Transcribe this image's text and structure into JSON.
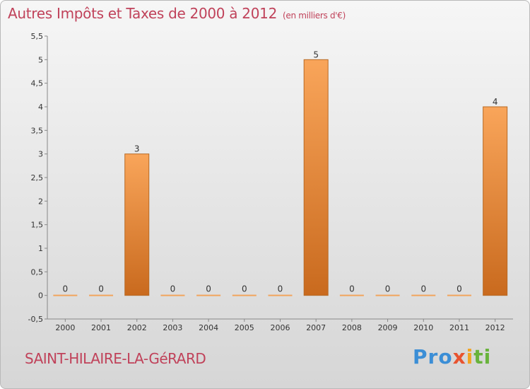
{
  "header": {
    "title": "Autres Impôts et Taxes de 2000 à 2012",
    "unit": "(en milliers d'€)"
  },
  "footer": {
    "commune": "SAINT-HILAIRE-LA-GéRARD"
  },
  "logo": {
    "part1": "Pro",
    "part2": "x",
    "part3": "i",
    "part4": "ti"
  },
  "colors": {
    "bar_light": "#f9a55a",
    "bar_dark": "#c96a1e",
    "title": "#c0425a",
    "grid": "#bdbdbd"
  },
  "chart_data": {
    "type": "bar",
    "categories": [
      "2000",
      "2001",
      "2002",
      "2003",
      "2004",
      "2005",
      "2006",
      "2007",
      "2008",
      "2009",
      "2010",
      "2011",
      "2012"
    ],
    "values": [
      0,
      0,
      3,
      0,
      0,
      0,
      0,
      5,
      0,
      0,
      0,
      0,
      4
    ],
    "data_labels": [
      "0",
      "0",
      "3",
      "0",
      "0",
      "0",
      "0",
      "5",
      "0",
      "0",
      "0",
      "0",
      "4"
    ],
    "title": "Autres Impôts et Taxes de 2000 à 2012",
    "xlabel": "",
    "ylabel": "",
    "ylim": [
      -0.5,
      5.5
    ],
    "y_ticks": [
      "-0,5",
      "0",
      "0,5",
      "1",
      "1,5",
      "2",
      "2,5",
      "3",
      "3,5",
      "4",
      "4,5",
      "5",
      "5,5"
    ],
    "grid": false,
    "legend": "none"
  }
}
